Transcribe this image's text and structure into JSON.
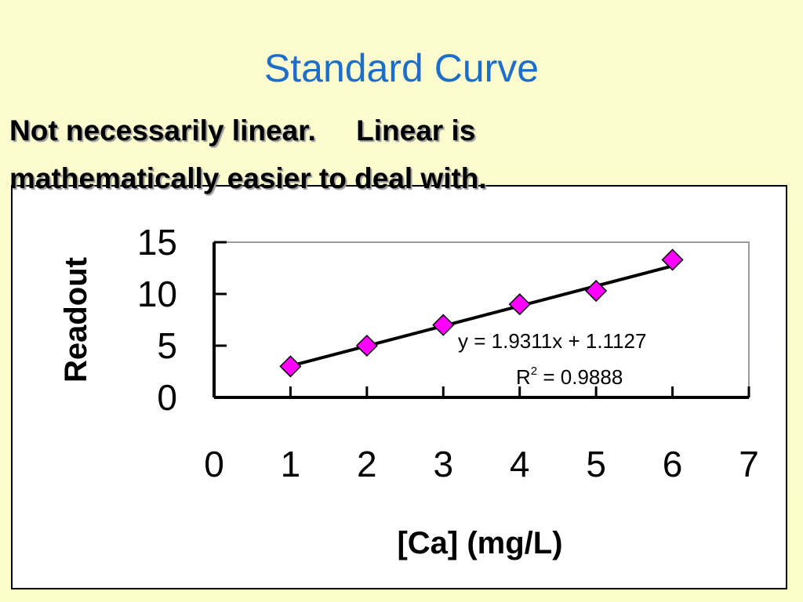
{
  "slide": {
    "title": "Standard Curve",
    "subtitle_line1": "Not necessarily linear.     Linear is",
    "subtitle_line2": "mathematically easier to deal with."
  },
  "colors": {
    "title": "#1d6ec9",
    "marker": "#ff00ff",
    "line": "#000000",
    "plot_border": "#9a9a9a"
  },
  "chart_data": {
    "type": "scatter",
    "xlabel": "[Ca] (mg/L)",
    "ylabel": "Readout",
    "xlim": [
      0,
      7
    ],
    "ylim": [
      0,
      15
    ],
    "x_ticks": [
      "0",
      "1",
      "2",
      "3",
      "4",
      "5",
      "6",
      "7"
    ],
    "y_ticks": [
      "0",
      "5",
      "10",
      "15"
    ],
    "grid": false,
    "legend": "none",
    "series": [
      {
        "x": [
          1,
          2,
          3,
          4,
          5,
          6
        ],
        "y": [
          3.0,
          5.0,
          7.0,
          9.0,
          10.3,
          13.3
        ],
        "marker": "diamond"
      }
    ],
    "trendline": {
      "type": "linear",
      "slope": 1.9311,
      "intercept": 1.1127,
      "x_range": [
        1,
        6
      ]
    },
    "annotations": {
      "equation": "y = 1.9311x + 1.1127",
      "r2_prefix": "R",
      "r2_sup": "2",
      "r2_value": " = 0.9888"
    }
  }
}
